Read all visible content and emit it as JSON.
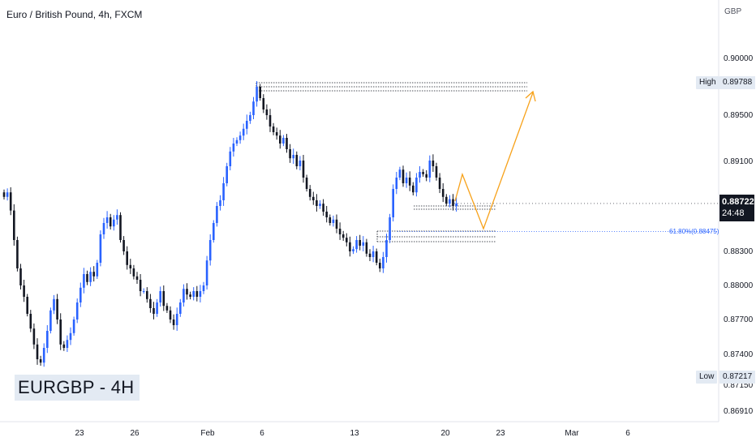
{
  "header": {
    "title": "Euro / British Pound, 4h, FXCM",
    "corner_label": "EURGBP - 4H"
  },
  "price_axis": {
    "currency": "GBP",
    "ticks": [
      "0.90000",
      "0.89500",
      "0.89100",
      "0.88300",
      "0.88000",
      "0.87700",
      "0.87400",
      "0.87150",
      "0.86910"
    ],
    "high_tag": "High",
    "high_value": "0.89788",
    "low_tag": "Low",
    "low_value": "0.87217",
    "current_price": "0.88722",
    "countdown": "24:48"
  },
  "time_axis": {
    "ticks": [
      "23",
      "26",
      "Feb",
      "6",
      "13",
      "20",
      "23",
      "Mar",
      "6"
    ]
  },
  "fib": {
    "label": "61.80%(0.88475)",
    "value": 0.88475
  },
  "colors": {
    "up": "#2962ff",
    "down": "#131722",
    "projection": "#f7a21b",
    "fib": "#2962ff",
    "axis_border": "#e0e3eb"
  },
  "chart_data": {
    "type": "candlestick",
    "title": "Euro / British Pound, 4h, FXCM",
    "y_unit": "GBP",
    "ylim": [
      0.8685,
      0.9035
    ],
    "x_tick_labels": [
      "23",
      "26",
      "Feb",
      "6",
      "13",
      "20",
      "23",
      "Mar",
      "6"
    ],
    "high": 0.89788,
    "low": 0.87217,
    "last": 0.88722,
    "close_series": [
      0.8878,
      0.8882,
      0.8866,
      0.884,
      0.8815,
      0.88,
      0.879,
      0.8775,
      0.8762,
      0.8748,
      0.8735,
      0.8732,
      0.8745,
      0.876,
      0.8778,
      0.8788,
      0.877,
      0.8748,
      0.8745,
      0.8752,
      0.8758,
      0.877,
      0.8785,
      0.8798,
      0.881,
      0.8803,
      0.8812,
      0.8808,
      0.882,
      0.8845,
      0.8855,
      0.886,
      0.8852,
      0.8858,
      0.8862,
      0.884,
      0.883,
      0.8818,
      0.8815,
      0.8808,
      0.8805,
      0.8795,
      0.8795,
      0.8788,
      0.878,
      0.8775,
      0.8785,
      0.8795,
      0.8782,
      0.8778,
      0.877,
      0.8765,
      0.8775,
      0.8785,
      0.8797,
      0.8792,
      0.879,
      0.8795,
      0.879,
      0.8795,
      0.88,
      0.8822,
      0.884,
      0.8855,
      0.887,
      0.8875,
      0.889,
      0.8905,
      0.8918,
      0.8925,
      0.8928,
      0.8932,
      0.8938,
      0.8945,
      0.895,
      0.8962,
      0.8975,
      0.8965,
      0.8955,
      0.895,
      0.894,
      0.8935,
      0.8932,
      0.8925,
      0.893,
      0.892,
      0.8912,
      0.8915,
      0.8905,
      0.891,
      0.8895,
      0.8885,
      0.8878,
      0.8875,
      0.887,
      0.8872,
      0.8865,
      0.886,
      0.8855,
      0.8858,
      0.885,
      0.8845,
      0.8842,
      0.8838,
      0.883,
      0.8832,
      0.884,
      0.8835,
      0.8838,
      0.8828,
      0.8825,
      0.883,
      0.882,
      0.8815,
      0.8825,
      0.884,
      0.886,
      0.8885,
      0.8895,
      0.8902,
      0.889,
      0.8895,
      0.8888,
      0.8882,
      0.8895,
      0.89,
      0.8898,
      0.8895,
      0.891,
      0.8905,
      0.8895,
      0.8885,
      0.8878,
      0.8872,
      0.8876,
      0.887,
      0.88722
    ]
  }
}
